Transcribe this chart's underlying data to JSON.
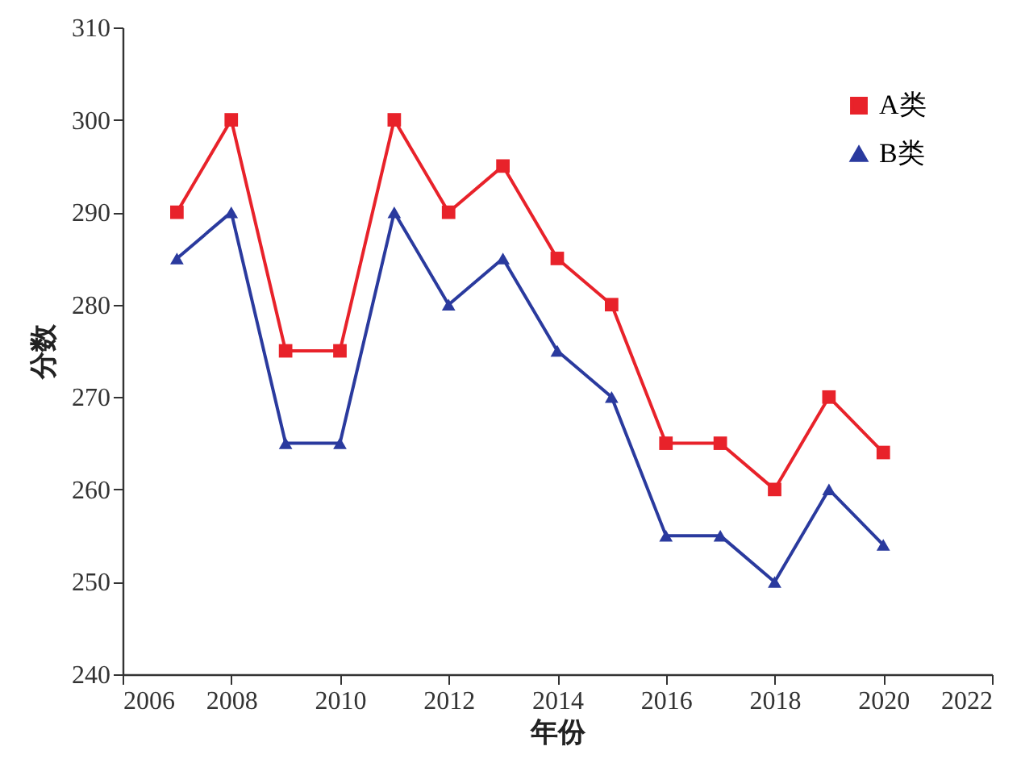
{
  "chart_data": {
    "type": "line",
    "xlabel": "年份",
    "ylabel": "分数",
    "x": [
      2007,
      2008,
      2009,
      2010,
      2011,
      2012,
      2013,
      2014,
      2015,
      2016,
      2017,
      2018,
      2019,
      2020
    ],
    "series": [
      {
        "name": "A类",
        "color": "#e8222a",
        "marker": "square",
        "values": [
          290,
          300,
          275,
          275,
          300,
          290,
          295,
          285,
          280,
          265,
          265,
          260,
          270,
          264
        ]
      },
      {
        "name": "B类",
        "color": "#2a3a9e",
        "marker": "triangle",
        "values": [
          285,
          290,
          265,
          265,
          290,
          280,
          285,
          275,
          270,
          255,
          255,
          250,
          260,
          254
        ]
      }
    ],
    "xlim": [
      2006,
      2022
    ],
    "xticks": [
      2006,
      2008,
      2010,
      2012,
      2014,
      2016,
      2018,
      2020,
      2022
    ],
    "ylim": [
      240,
      310
    ],
    "yticks": [
      240,
      250,
      260,
      270,
      280,
      290,
      300,
      310
    ],
    "grid": false,
    "legend": "top right",
    "line_style": "solid"
  }
}
